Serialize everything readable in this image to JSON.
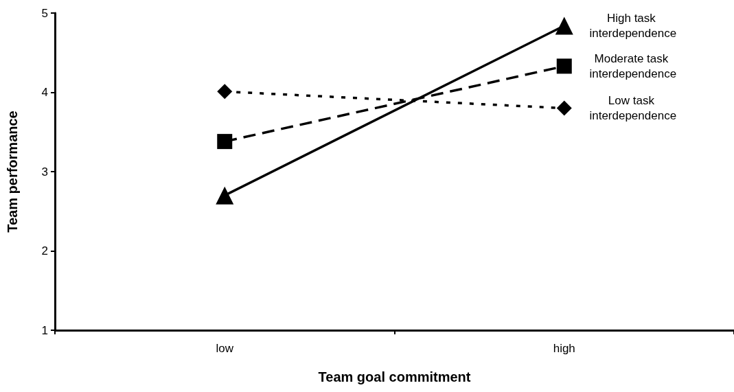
{
  "chart_data": {
    "type": "line",
    "xlabel": "Team goal commitment",
    "ylabel": "Team performance",
    "categories": [
      "low",
      "high"
    ],
    "series": [
      {
        "name": "High task interdependence",
        "color": "#000000",
        "values": [
          2.7,
          4.84
        ],
        "marker": "triangle",
        "line_style": "solid"
      },
      {
        "name": "Moderate task interdependence",
        "color": "#000000",
        "values": [
          3.38,
          4.33
        ],
        "marker": "square",
        "line_style": "dashed"
      },
      {
        "name": "Low task interdependence",
        "color": "#000000",
        "values": [
          4.01,
          3.8
        ],
        "marker": "diamond",
        "line_style": "dotted"
      }
    ],
    "ylim": [
      1,
      5
    ],
    "yticks": [
      1,
      2,
      3,
      4,
      5
    ],
    "grid": false,
    "legend": false
  }
}
